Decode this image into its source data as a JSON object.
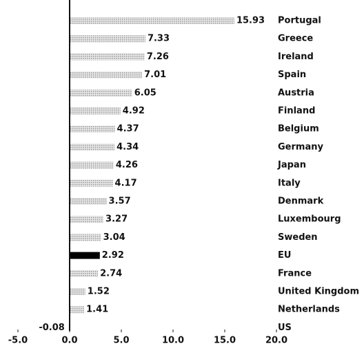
{
  "chart_data": {
    "type": "barh",
    "categories": [
      "Portugal",
      "Greece",
      "Ireland",
      "Spain",
      "Austria",
      "Finland",
      "Belgium",
      "Germany",
      "Japan",
      "Italy",
      "Denmark",
      "Luxembourg",
      "Sweden",
      "EU",
      "France",
      "United Kingdom",
      "Netherlands",
      "US"
    ],
    "values": [
      15.93,
      7.33,
      7.26,
      7.01,
      6.05,
      4.92,
      4.37,
      4.34,
      4.26,
      4.17,
      3.57,
      3.27,
      3.04,
      2.92,
      2.74,
      1.52,
      1.41,
      -0.08
    ],
    "colors": [
      "#bdbdbd",
      "#bdbdbd",
      "#bdbdbd",
      "#bdbdbd",
      "#bdbdbd",
      "#bdbdbd",
      "#bdbdbd",
      "#bdbdbd",
      "#bdbdbd",
      "#bdbdbd",
      "#bdbdbd",
      "#bdbdbd",
      "#bdbdbd",
      "#000000",
      "#bdbdbd",
      "#bdbdbd",
      "#bdbdbd",
      "#bdbdbd"
    ],
    "xlim": [
      -5,
      20
    ],
    "xticks": [
      {
        "value": -5,
        "label": "-5.0"
      },
      {
        "value": 0,
        "label": "0.0"
      },
      {
        "value": 5,
        "label": "5.0"
      },
      {
        "value": 10,
        "label": "10.0"
      },
      {
        "value": 15,
        "label": "15.0"
      },
      {
        "value": 20,
        "label": "20.0"
      }
    ],
    "grid": false
  }
}
